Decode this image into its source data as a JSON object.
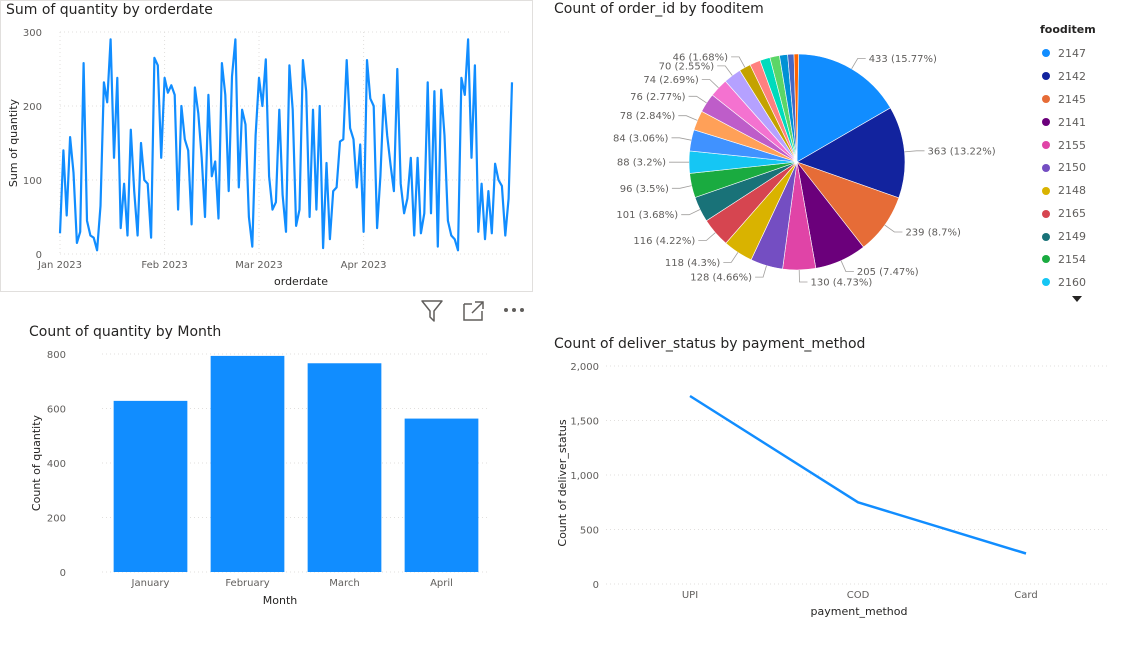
{
  "visuals": {
    "line_title": "Sum of quantity by orderdate",
    "pie_title": "Count of order_id by fooditem",
    "bar_title": "Count of quantity by Month",
    "status_title": "Count of deliver_status by payment_method"
  },
  "colors": {
    "accent": "#118DFF",
    "grid": "#e1dfdd",
    "palette": [
      "#118DFF",
      "#12239E",
      "#E66C37",
      "#6B007B",
      "#E044A7",
      "#744EC2",
      "#D9B300",
      "#D64550",
      "#197278",
      "#1AAB40",
      "#15C6F4",
      "#4092FF",
      "#FFA058",
      "#BE5DC9",
      "#F472D0",
      "#B5A1FF",
      "#C4A200",
      "#FF8080",
      "#00DBBC",
      "#5BD667",
      "#0091D5",
      "#4668C5",
      "#FF6300"
    ]
  },
  "icons": {
    "filter": "filter-icon",
    "focus": "focus-mode-icon",
    "more": "more-options-icon",
    "legend_more": "chevron-down-icon"
  },
  "legend": {
    "title": "fooditem",
    "items": [
      "2147",
      "2142",
      "2145",
      "2141",
      "2155",
      "2150",
      "2148",
      "2165",
      "2149",
      "2154",
      "2160"
    ]
  },
  "chart_data": [
    {
      "type": "line",
      "title": "Sum of quantity by orderdate",
      "xlabel": "orderdate",
      "ylabel": "Sum of quantity",
      "ylim": [
        0,
        300
      ],
      "yticks": [
        "0",
        "100",
        "200",
        "300"
      ],
      "xticks": [
        {
          "date": "2023-01-01",
          "label": "Jan 2023"
        },
        {
          "date": "2023-02-01",
          "label": "Feb 2023"
        },
        {
          "date": "2023-03-01",
          "label": "Mar 2023"
        },
        {
          "date": "2023-04-01",
          "label": "Apr 2023"
        }
      ],
      "x_start": "2023-01-01",
      "values": [
        28,
        140,
        52,
        158,
        110,
        15,
        30,
        258,
        45,
        25,
        22,
        5,
        65,
        232,
        205,
        290,
        130,
        238,
        35,
        95,
        25,
        168,
        85,
        25,
        150,
        100,
        95,
        22,
        265,
        255,
        130,
        238,
        218,
        228,
        215,
        60,
        200,
        155,
        140,
        40,
        225,
        190,
        130,
        50,
        215,
        105,
        125,
        48,
        258,
        215,
        85,
        240,
        290,
        90,
        195,
        175,
        50,
        10,
        160,
        238,
        200,
        263,
        105,
        60,
        70,
        195,
        80,
        30,
        255,
        195,
        38,
        60,
        262,
        220,
        50,
        195,
        60,
        200,
        8,
        123,
        20,
        85,
        90,
        152,
        155,
        262,
        170,
        155,
        90,
        148,
        30,
        262,
        210,
        200,
        35,
        105,
        215,
        160,
        120,
        85,
        250,
        95,
        55,
        75,
        130,
        25,
        130,
        28,
        55,
        232,
        55,
        220,
        10,
        222,
        160,
        45,
        25,
        20,
        5,
        238,
        215,
        290,
        130,
        255,
        30,
        95,
        20,
        85,
        28,
        122,
        100,
        92,
        25,
        75,
        232
      ]
    },
    {
      "type": "pie",
      "title": "Count of order_id by fooditem",
      "slices": [
        {
          "label": "2147",
          "value": 433,
          "text": "433 (15.77%)"
        },
        {
          "label": "2142",
          "value": 363,
          "text": "363 (13.22%)"
        },
        {
          "label": "2145",
          "value": 239,
          "text": "239 (8.7%)"
        },
        {
          "label": "2141",
          "value": 205,
          "text": "205 (7.47%)"
        },
        {
          "label": "2155",
          "value": 130,
          "text": "130 (4.73%)"
        },
        {
          "label": "2150",
          "value": 128,
          "text": "128 (4.66%)"
        },
        {
          "label": "2148",
          "value": 118,
          "text": "118 (4.3%)"
        },
        {
          "label": "2165",
          "value": 116,
          "text": "116 (4.22%)"
        },
        {
          "label": "2149",
          "value": 101,
          "text": "101 (3.68%)"
        },
        {
          "label": "2154",
          "value": 96,
          "text": "96 (3.5%)"
        },
        {
          "label": "2160",
          "value": 88,
          "text": "88 (3.2%)"
        },
        {
          "label": "",
          "value": 84,
          "text": "84 (3.06%)"
        },
        {
          "label": "",
          "value": 78,
          "text": "78 (2.84%)"
        },
        {
          "label": "",
          "value": 76,
          "text": "76 (2.77%)"
        },
        {
          "label": "",
          "value": 74,
          "text": "74 (2.69%)"
        },
        {
          "label": "",
          "value": 70,
          "text": "70 (2.55%)"
        },
        {
          "label": "",
          "value": 46,
          "text": "46 (1.68%)"
        },
        {
          "label": "",
          "value": 42,
          "text": ""
        },
        {
          "label": "",
          "value": 40,
          "text": ""
        },
        {
          "label": "",
          "value": 38,
          "text": ""
        },
        {
          "label": "",
          "value": 32,
          "text": ""
        },
        {
          "label": "",
          "value": 25,
          "text": ""
        },
        {
          "label": "",
          "value": 18,
          "text": ""
        }
      ]
    },
    {
      "type": "bar",
      "title": "Count of quantity by Month",
      "categories": [
        "January",
        "February",
        "March",
        "April"
      ],
      "values": [
        628,
        793,
        766,
        563
      ],
      "xlabel": "Month",
      "ylabel": "Count of quantity",
      "ylim": [
        0,
        800
      ],
      "yticks": [
        "0",
        "200",
        "400",
        "600",
        "800"
      ]
    },
    {
      "type": "line",
      "title": "Count of deliver_status by payment_method",
      "categories": [
        "UPI",
        "COD",
        "Card"
      ],
      "values": [
        1725,
        750,
        280
      ],
      "xlabel": "payment_method",
      "ylabel": "Count of deliver_status",
      "ylim": [
        0,
        2000
      ],
      "yticks": [
        "0",
        "500",
        "1,000",
        "1,500",
        "2,000"
      ]
    }
  ]
}
